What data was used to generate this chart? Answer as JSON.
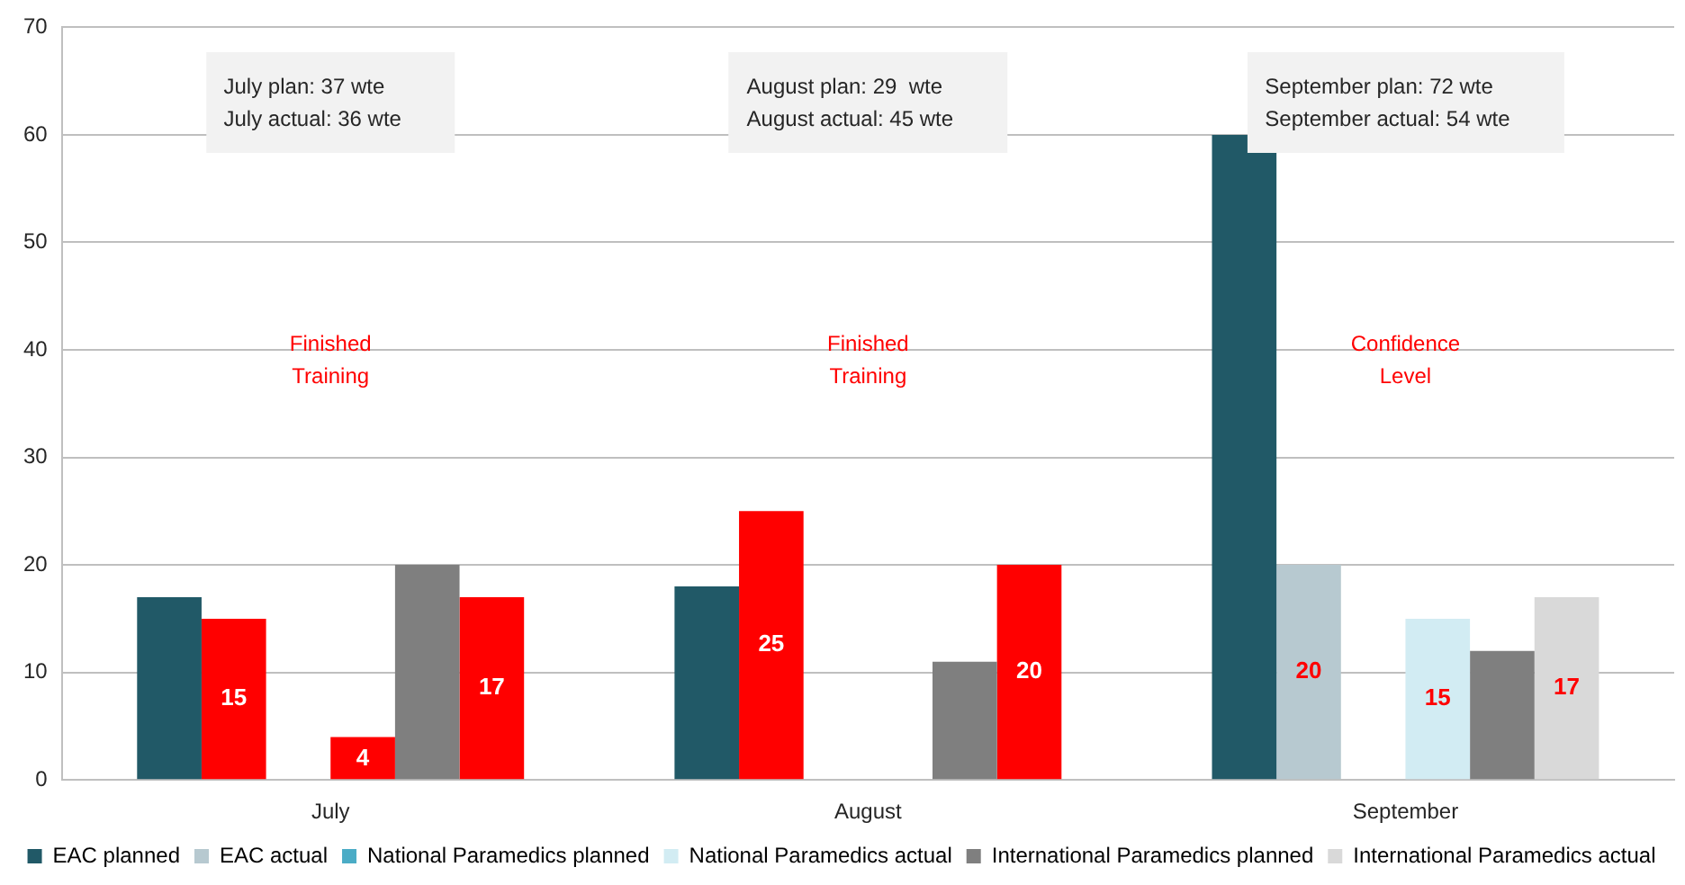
{
  "chart_data": {
    "type": "bar",
    "categories": [
      "July",
      "August",
      "September"
    ],
    "series": [
      {
        "name": "EAC planned",
        "color": "#215967",
        "values": [
          17,
          18,
          60
        ]
      },
      {
        "name": "EAC actual",
        "color": "#b7c9d0",
        "colors": [
          "#ff0000",
          "#ff0000",
          "#b7c9d0"
        ],
        "values": [
          15,
          25,
          20
        ],
        "value_labels": [
          "15",
          "25",
          "20"
        ]
      },
      {
        "name": "National Paramedics planned",
        "color": "#4bacc6",
        "values": [
          null,
          null,
          null
        ]
      },
      {
        "name": "National Paramedics actual",
        "color": "#d2ecf3",
        "colors": [
          "#ff0000",
          null,
          "#d2ecf3"
        ],
        "values": [
          4,
          null,
          15
        ],
        "value_labels": [
          "4",
          null,
          "15"
        ]
      },
      {
        "name": "International Paramedics planned",
        "color": "#7f7f7f",
        "values": [
          20,
          11,
          12
        ]
      },
      {
        "name": "International Paramedics actual",
        "color": "#d9d9d9",
        "colors": [
          "#ff0000",
          "#ff0000",
          "#d9d9d9"
        ],
        "values": [
          17,
          20,
          17
        ],
        "value_labels": [
          "17",
          "20",
          "17"
        ]
      }
    ],
    "ylim": [
      0,
      70
    ],
    "yticks": [
      0,
      10,
      20,
      30,
      40,
      50,
      60,
      70
    ],
    "grid": "y",
    "legend": "bottom",
    "annotations": [
      "July plan: 37 wte\nJuly actual: 36 wte",
      "August plan: 29  wte\nAugust actual: 45 wte",
      "September plan: 72 wte\nSeptember actual: 54 wte",
      "Finished\nTraining",
      "Finished\nTraining",
      "Confidence\nLevel"
    ]
  }
}
